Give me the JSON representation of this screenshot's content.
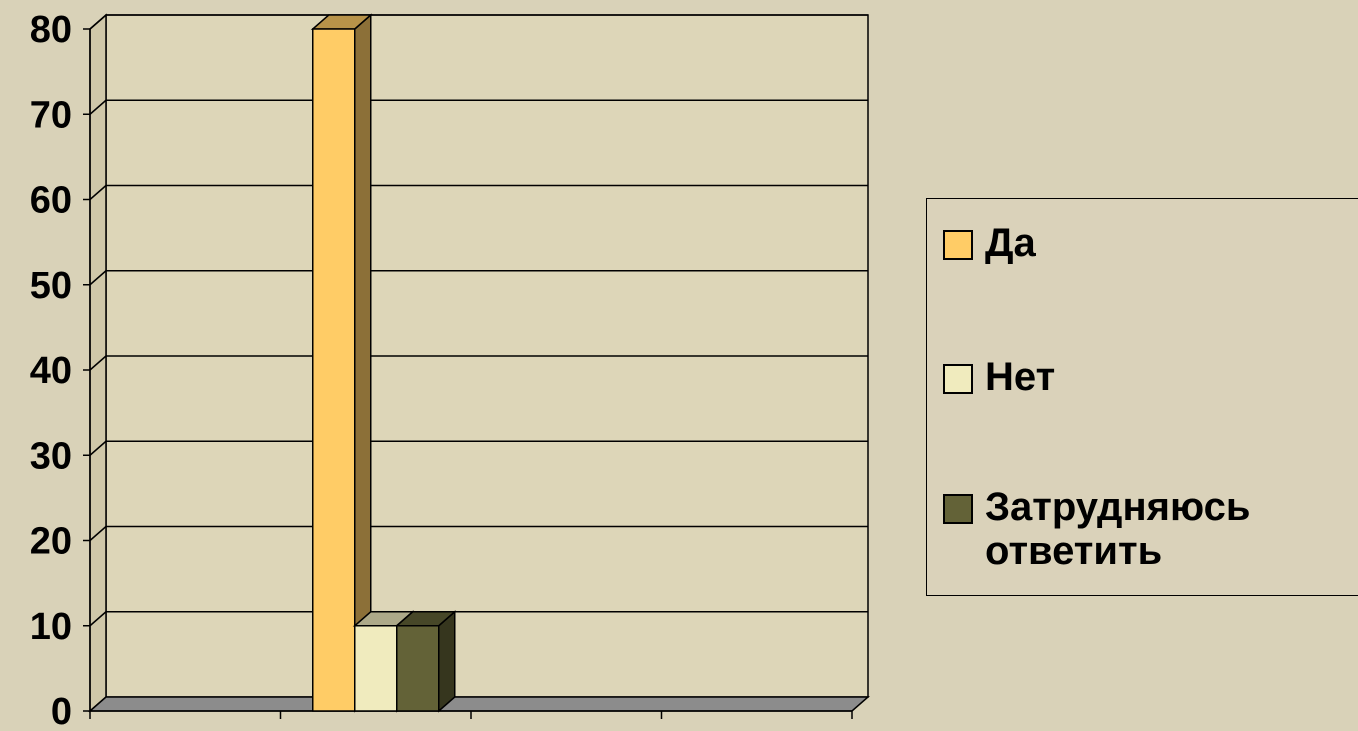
{
  "chart_data": {
    "type": "bar",
    "style": "3d-clustered",
    "categories": [
      "",
      "",
      "",
      ""
    ],
    "series": [
      {
        "name": "Да",
        "values": [
          0,
          80,
          0,
          0
        ],
        "color": "#ffcc66"
      },
      {
        "name": "Нет",
        "values": [
          0,
          10,
          0,
          0
        ],
        "color": "#f0ebbe"
      },
      {
        "name": "Затрудняюсь ответить",
        "values": [
          0,
          10,
          0,
          0
        ],
        "color": "#636237"
      }
    ],
    "ylim": [
      0,
      80
    ],
    "yticks": [
      0,
      10,
      20,
      30,
      40,
      50,
      60,
      70,
      80
    ],
    "grid": true,
    "legend_position": "right",
    "title": "",
    "xlabel": "",
    "ylabel": ""
  },
  "legend": {
    "items": [
      {
        "label": "Да",
        "color": "#ffcc66"
      },
      {
        "label": "Нет",
        "color": "#f0ebbe"
      },
      {
        "label": "Затрудняюсь ответить",
        "color": "#636237"
      }
    ]
  },
  "colors": {
    "background": "#d9d2b8",
    "plot_wall": "#ddd6b8",
    "floor": "#8c8c8c"
  }
}
